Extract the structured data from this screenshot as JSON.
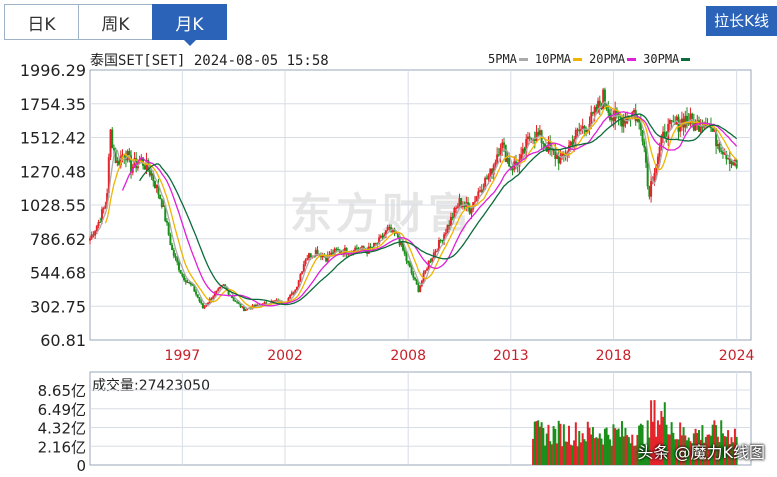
{
  "tabs": [
    {
      "label": "日K",
      "active": false
    },
    {
      "label": "周K",
      "active": false
    },
    {
      "label": "月K",
      "active": true
    }
  ],
  "stretch_button": "拉长K线",
  "header": {
    "title": "泰国SET[SET] 2024-08-05 15:58"
  },
  "watermark": "东方财富",
  "credit": "头条 @魔力K线图",
  "colors": {
    "up": "#e3242b",
    "down": "#1a8f1a",
    "ma5": "#aaaaaa",
    "ma10": "#f0b400",
    "ma20": "#e01fd8",
    "ma30": "#0b6b3a",
    "grid": "#d8dde6"
  },
  "volume": {
    "label": "成交量:27423050",
    "ticks": [
      "8.65亿",
      "6.49亿",
      "4.32亿",
      "2.16亿",
      "0"
    ]
  },
  "chart_data": {
    "type": "candlestick",
    "title": "泰国SET[SET] 2024-08-05 15:58",
    "y_ticks": [
      "1996.29",
      "1754.35",
      "1512.42",
      "1270.48",
      "1028.55",
      "786.62",
      "544.68",
      "302.75",
      "60.81"
    ],
    "ylim": [
      60.81,
      1996.29
    ],
    "x_ticks": [
      "1997",
      "2002",
      "2008",
      "2013",
      "2018",
      "2024"
    ],
    "xlim": [
      1993.0,
      2025.2
    ],
    "legend": [
      "5PMA",
      "10PMA",
      "20PMA",
      "30PMA"
    ],
    "grid": true,
    "price_path": [
      [
        1993.0,
        790
      ],
      [
        1993.4,
        900
      ],
      [
        1993.8,
        1050
      ],
      [
        1994.0,
        1550
      ],
      [
        1994.3,
        1320
      ],
      [
        1994.7,
        1420
      ],
      [
        1995.0,
        1300
      ],
      [
        1995.5,
        1350
      ],
      [
        1996.0,
        1250
      ],
      [
        1996.5,
        1050
      ],
      [
        1997.0,
        700
      ],
      [
        1997.5,
        520
      ],
      [
        1998.0,
        440
      ],
      [
        1998.5,
        290
      ],
      [
        1999.0,
        380
      ],
      [
        1999.5,
        450
      ],
      [
        2000.0,
        350
      ],
      [
        2000.5,
        280
      ],
      [
        2001.0,
        300
      ],
      [
        2001.5,
        320
      ],
      [
        2002.0,
        340
      ],
      [
        2002.5,
        330
      ],
      [
        2003.0,
        420
      ],
      [
        2003.5,
        650
      ],
      [
        2004.0,
        700
      ],
      [
        2004.5,
        650
      ],
      [
        2005.0,
        700
      ],
      [
        2005.5,
        700
      ],
      [
        2006.0,
        720
      ],
      [
        2006.5,
        700
      ],
      [
        2007.0,
        750
      ],
      [
        2007.5,
        850
      ],
      [
        2008.0,
        800
      ],
      [
        2008.5,
        600
      ],
      [
        2009.0,
        420
      ],
      [
        2009.5,
        620
      ],
      [
        2010.0,
        750
      ],
      [
        2010.5,
        900
      ],
      [
        2011.0,
        1050
      ],
      [
        2011.5,
        1000
      ],
      [
        2012.0,
        1150
      ],
      [
        2012.5,
        1250
      ],
      [
        2013.0,
        1480
      ],
      [
        2013.5,
        1300
      ],
      [
        2014.0,
        1350
      ],
      [
        2014.5,
        1550
      ],
      [
        2015.0,
        1500
      ],
      [
        2015.5,
        1400
      ],
      [
        2016.0,
        1350
      ],
      [
        2016.5,
        1500
      ],
      [
        2017.0,
        1580
      ],
      [
        2017.5,
        1650
      ],
      [
        2018.0,
        1800
      ],
      [
        2018.5,
        1650
      ],
      [
        2019.0,
        1650
      ],
      [
        2019.5,
        1700
      ],
      [
        2020.0,
        1500
      ],
      [
        2020.2,
        1100
      ],
      [
        2020.5,
        1300
      ],
      [
        2021.0,
        1550
      ],
      [
        2021.5,
        1600
      ],
      [
        2022.0,
        1650
      ],
      [
        2022.5,
        1600
      ],
      [
        2023.0,
        1650
      ],
      [
        2023.5,
        1500
      ],
      [
        2024.0,
        1400
      ],
      [
        2024.5,
        1300
      ]
    ]
  }
}
